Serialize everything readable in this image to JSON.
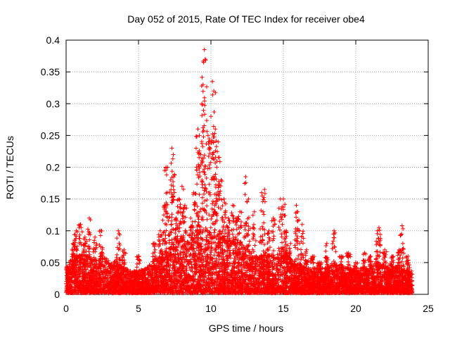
{
  "chart_data": {
    "type": "scatter",
    "title": "Day 052 of 2015, Rate Of TEC Index for receiver obe4",
    "xlabel": "GPS time / hours",
    "ylabel": "ROTI / TECUs",
    "xlim": [
      0,
      25
    ],
    "ylim": [
      0,
      0.4
    ],
    "xticks": [
      "0",
      "5",
      "10",
      "15",
      "20",
      "25"
    ],
    "yticks": [
      "0",
      "0.05",
      "0.1",
      "0.15",
      "0.2",
      "0.25",
      "0.3",
      "0.35",
      "0.4"
    ],
    "grid": true,
    "marker": "+",
    "color": "#ff0000",
    "series": [
      {
        "baseline_envelope": [
          [
            0.0,
            0.04
          ],
          [
            0.5,
            0.06
          ],
          [
            1.0,
            0.06
          ],
          [
            1.5,
            0.06
          ],
          [
            2.0,
            0.05
          ],
          [
            2.5,
            0.06
          ],
          [
            3.0,
            0.05
          ],
          [
            3.5,
            0.05
          ],
          [
            4.0,
            0.04
          ],
          [
            4.5,
            0.035
          ],
          [
            5.0,
            0.035
          ],
          [
            5.5,
            0.04
          ],
          [
            6.0,
            0.05
          ],
          [
            6.5,
            0.06
          ],
          [
            7.0,
            0.07
          ],
          [
            7.5,
            0.08
          ],
          [
            8.0,
            0.09
          ],
          [
            8.5,
            0.08
          ],
          [
            9.0,
            0.09
          ],
          [
            9.5,
            0.1
          ],
          [
            10.0,
            0.1
          ],
          [
            10.5,
            0.1
          ],
          [
            11.0,
            0.09
          ],
          [
            11.5,
            0.08
          ],
          [
            12.0,
            0.08
          ],
          [
            12.5,
            0.07
          ],
          [
            13.0,
            0.06
          ],
          [
            13.5,
            0.06
          ],
          [
            14.0,
            0.06
          ],
          [
            14.5,
            0.06
          ],
          [
            15.0,
            0.07
          ],
          [
            15.5,
            0.05
          ],
          [
            16.0,
            0.05
          ],
          [
            16.5,
            0.04
          ],
          [
            17.0,
            0.04
          ],
          [
            17.5,
            0.04
          ],
          [
            18.0,
            0.04
          ],
          [
            18.5,
            0.05
          ],
          [
            19.0,
            0.04
          ],
          [
            19.5,
            0.04
          ],
          [
            20.0,
            0.035
          ],
          [
            20.5,
            0.04
          ],
          [
            21.0,
            0.04
          ],
          [
            21.5,
            0.05
          ],
          [
            22.0,
            0.045
          ],
          [
            22.5,
            0.04
          ],
          [
            23.0,
            0.045
          ],
          [
            23.5,
            0.04
          ],
          [
            23.9,
            0.035
          ]
        ],
        "peaks": [
          [
            0.5,
            0.08
          ],
          [
            0.7,
            0.1
          ],
          [
            1.0,
            0.11
          ],
          [
            1.3,
            0.09
          ],
          [
            1.6,
            0.12
          ],
          [
            2.0,
            0.09
          ],
          [
            2.4,
            0.1
          ],
          [
            3.6,
            0.1
          ],
          [
            4.0,
            0.07
          ],
          [
            5.0,
            0.06
          ],
          [
            6.1,
            0.08
          ],
          [
            6.5,
            0.1
          ],
          [
            6.8,
            0.14
          ],
          [
            6.9,
            0.2
          ],
          [
            7.0,
            0.2
          ],
          [
            7.2,
            0.18
          ],
          [
            7.3,
            0.23
          ],
          [
            7.4,
            0.22
          ],
          [
            7.6,
            0.12
          ],
          [
            7.8,
            0.15
          ],
          [
            8.0,
            0.17
          ],
          [
            8.2,
            0.14
          ],
          [
            8.6,
            0.12
          ],
          [
            8.8,
            0.16
          ],
          [
            9.0,
            0.2
          ],
          [
            9.1,
            0.26
          ],
          [
            9.2,
            0.25
          ],
          [
            9.3,
            0.22
          ],
          [
            9.45,
            0.33
          ],
          [
            9.5,
            0.365
          ],
          [
            9.55,
            0.385
          ],
          [
            9.6,
            0.37
          ],
          [
            9.8,
            0.25
          ],
          [
            10.0,
            0.28
          ],
          [
            10.1,
            0.335
          ],
          [
            10.2,
            0.32
          ],
          [
            10.3,
            0.26
          ],
          [
            10.4,
            0.2
          ],
          [
            10.5,
            0.24
          ],
          [
            10.7,
            0.18
          ],
          [
            10.9,
            0.15
          ],
          [
            11.2,
            0.12
          ],
          [
            11.5,
            0.14
          ],
          [
            11.8,
            0.12
          ],
          [
            12.0,
            0.13
          ],
          [
            12.4,
            0.185
          ],
          [
            12.6,
            0.15
          ],
          [
            13.0,
            0.13
          ],
          [
            13.5,
            0.16
          ],
          [
            13.7,
            0.165
          ],
          [
            14.0,
            0.1
          ],
          [
            14.3,
            0.12
          ],
          [
            14.8,
            0.15
          ],
          [
            15.0,
            0.15
          ],
          [
            15.2,
            0.1
          ],
          [
            15.5,
            0.08
          ],
          [
            15.9,
            0.14
          ],
          [
            16.0,
            0.13
          ],
          [
            16.3,
            0.11
          ],
          [
            16.6,
            0.07
          ],
          [
            17.0,
            0.06
          ],
          [
            17.5,
            0.05
          ],
          [
            18.0,
            0.08
          ],
          [
            18.5,
            0.1
          ],
          [
            19.0,
            0.06
          ],
          [
            19.5,
            0.065
          ],
          [
            20.0,
            0.05
          ],
          [
            20.6,
            0.065
          ],
          [
            21.0,
            0.06
          ],
          [
            21.5,
            0.1
          ],
          [
            21.6,
            0.105
          ],
          [
            22.0,
            0.07
          ],
          [
            22.5,
            0.06
          ],
          [
            23.0,
            0.07
          ],
          [
            23.2,
            0.108
          ],
          [
            23.6,
            0.06
          ]
        ]
      }
    ]
  }
}
